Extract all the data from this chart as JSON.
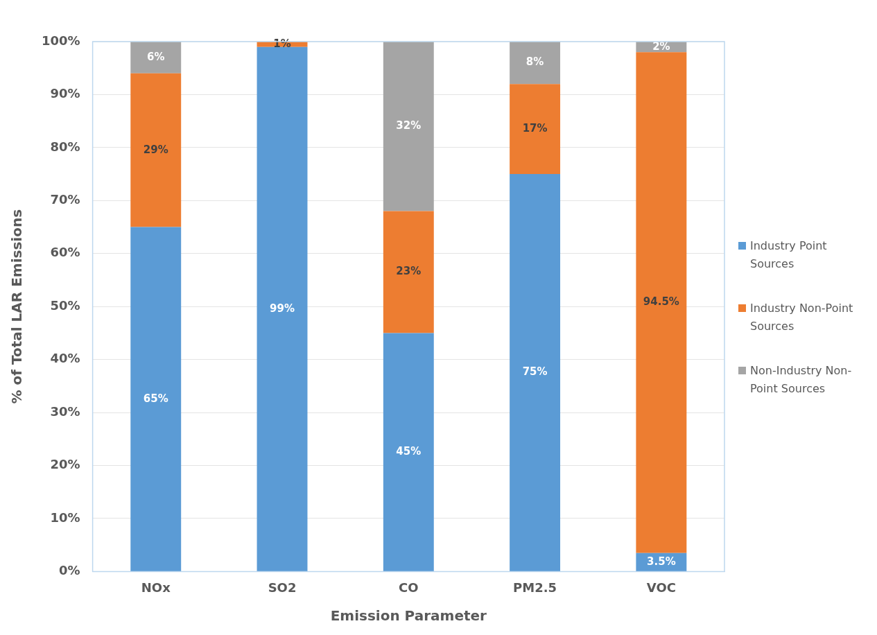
{
  "chart_data": {
    "type": "bar",
    "stacked": true,
    "xlabel": "Emission Parameter",
    "ylabel": "% of Total LAR Emissions",
    "categories": [
      "NOx",
      "SO2",
      "CO",
      "PM2.5",
      "VOC"
    ],
    "series": [
      {
        "name": "Industry Point Sources",
        "color": "#5b9bd5",
        "values": [
          65,
          99,
          45,
          75,
          3.5
        ],
        "value_labels": [
          "65%",
          "99%",
          "45%",
          "75%",
          "3.5%"
        ]
      },
      {
        "name": "Industry Non-Point Sources",
        "color": "#ed7d31",
        "values": [
          29,
          1,
          23,
          17,
          94.5
        ],
        "value_labels": [
          "29%",
          "1%",
          "23%",
          "17%",
          "94.5%"
        ]
      },
      {
        "name": "Non-Industry Non-Point Sources",
        "color": "#a5a5a5",
        "values": [
          6,
          null,
          32,
          8,
          2
        ],
        "value_labels": [
          "6%",
          null,
          "32%",
          "8%",
          "2%"
        ]
      }
    ],
    "ylim": [
      0,
      100
    ],
    "yticks": [
      {
        "value": 0,
        "label": "0%"
      },
      {
        "value": 10,
        "label": "10%"
      },
      {
        "value": 20,
        "label": "20%"
      },
      {
        "value": 30,
        "label": "30%"
      },
      {
        "value": 40,
        "label": "40%"
      },
      {
        "value": 50,
        "label": "50%"
      },
      {
        "value": 60,
        "label": "60%"
      },
      {
        "value": 70,
        "label": "70%"
      },
      {
        "value": 80,
        "label": "80%"
      },
      {
        "value": 90,
        "label": "90%"
      },
      {
        "value": 100,
        "label": "100%"
      }
    ],
    "grid": "y",
    "legend": "right"
  }
}
